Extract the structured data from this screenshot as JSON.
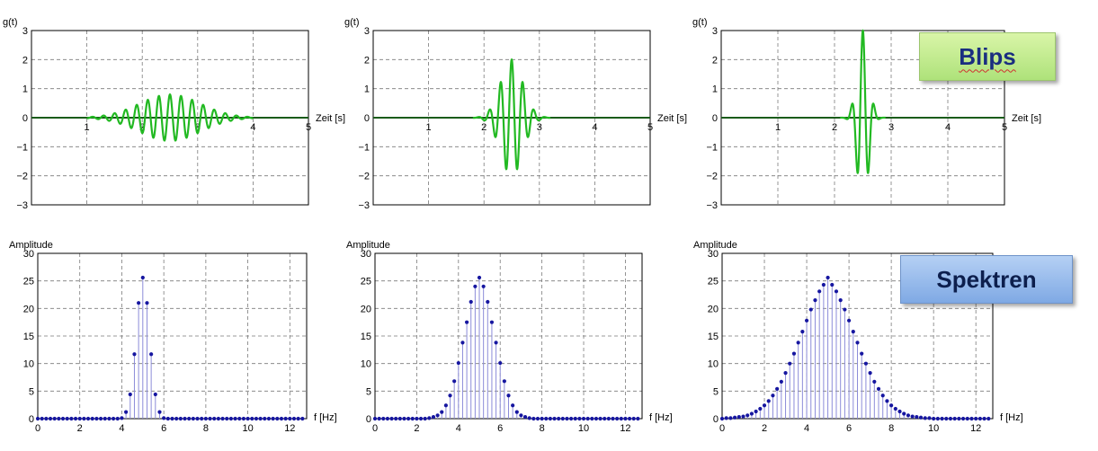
{
  "chart_data": [
    {
      "type": "line",
      "ylabel": "g(t)",
      "xlabel": "Zeit [s]",
      "xlim": [
        0,
        5
      ],
      "ylim": [
        -3,
        3
      ],
      "xticks": [
        "1",
        "2",
        "3",
        "4",
        "5"
      ],
      "yticks": [
        "3",
        "2",
        "1",
        "0",
        "−1",
        "−2",
        "−3"
      ],
      "grid": true,
      "signal": {
        "center": 2.5,
        "amplitude": 0.8,
        "sigma": 0.55,
        "frequency": 5,
        "range": [
          1.0,
          4.0
        ]
      }
    },
    {
      "type": "line",
      "ylabel": "g(t)",
      "xlabel": "Zeit [s]",
      "xlim": [
        0,
        5
      ],
      "ylim": [
        -3,
        3
      ],
      "xticks": [
        "1",
        "2",
        "3",
        "4",
        "5"
      ],
      "yticks": [
        "3",
        "2",
        "1",
        "0",
        "−1",
        "−2",
        "−3"
      ],
      "grid": true,
      "signal": {
        "center": 2.5,
        "amplitude": 2.0,
        "sigma": 0.2,
        "frequency": 5,
        "range": [
          1.8,
          3.2
        ]
      }
    },
    {
      "type": "line",
      "ylabel": "g(t)",
      "xlabel": "Zeit [s]",
      "xlim": [
        0,
        5
      ],
      "ylim": [
        -3,
        3
      ],
      "xticks": [
        "1",
        "2",
        "3",
        "4",
        "5"
      ],
      "yticks": [
        "3",
        "2",
        "1",
        "0",
        "−1",
        "−2",
        "−3"
      ],
      "grid": true,
      "signal": {
        "center": 2.5,
        "amplitude": 3.0,
        "sigma": 0.1,
        "frequency": 5,
        "range": [
          2.1,
          2.9
        ]
      }
    },
    {
      "type": "stem",
      "ylabel": "Amplitude",
      "xlabel": "f [Hz]",
      "xlim": [
        0,
        12.8
      ],
      "ylim": [
        0,
        30
      ],
      "xticks": [
        "0",
        "2",
        "4",
        "6",
        "8",
        "10",
        "12"
      ],
      "yticks": [
        "30",
        "25",
        "20",
        "15",
        "10",
        "5",
        "0"
      ],
      "grid": true,
      "x": [
        0,
        0.2,
        0.4,
        0.6,
        0.8,
        1.0,
        1.2,
        1.4,
        1.6,
        1.8,
        2.0,
        2.2,
        2.4,
        2.6,
        2.8,
        3.0,
        3.2,
        3.4,
        3.6,
        3.8,
        4.0,
        4.2,
        4.4,
        4.6,
        4.8,
        5.0,
        5.2,
        5.4,
        5.6,
        5.8,
        6.0,
        6.2,
        6.4,
        6.6,
        6.8,
        7.0,
        7.2,
        7.4,
        7.6,
        7.8,
        8.0,
        8.2,
        8.4,
        8.6,
        8.8,
        9.0,
        9.2,
        9.4,
        9.6,
        9.8,
        10.0,
        10.2,
        10.4,
        10.6,
        10.8,
        11.0,
        11.2,
        11.4,
        11.6,
        11.8,
        12.0,
        12.2,
        12.4,
        12.6
      ],
      "values": [
        0,
        0,
        0,
        0,
        0,
        0,
        0,
        0,
        0,
        0,
        0,
        0,
        0,
        0,
        0,
        0,
        0,
        0,
        0,
        0,
        0.1,
        1.2,
        4.4,
        11.7,
        21.0,
        25.6,
        21.0,
        11.7,
        4.4,
        1.2,
        0.1,
        0,
        0,
        0,
        0,
        0,
        0,
        0,
        0,
        0,
        0,
        0,
        0,
        0,
        0,
        0,
        0,
        0,
        0,
        0,
        0,
        0,
        0,
        0,
        0,
        0,
        0,
        0,
        0,
        0,
        0,
        0,
        0,
        0
      ]
    },
    {
      "type": "stem",
      "ylabel": "Amplitude",
      "xlabel": "f [Hz]",
      "xlim": [
        0,
        12.8
      ],
      "ylim": [
        0,
        30
      ],
      "xticks": [
        "0",
        "2",
        "4",
        "6",
        "8",
        "10",
        "12"
      ],
      "yticks": [
        "30",
        "25",
        "20",
        "15",
        "10",
        "5",
        "0"
      ],
      "grid": true,
      "x": [
        0,
        0.2,
        0.4,
        0.6,
        0.8,
        1.0,
        1.2,
        1.4,
        1.6,
        1.8,
        2.0,
        2.2,
        2.4,
        2.6,
        2.8,
        3.0,
        3.2,
        3.4,
        3.6,
        3.8,
        4.0,
        4.2,
        4.4,
        4.6,
        4.8,
        5.0,
        5.2,
        5.4,
        5.6,
        5.8,
        6.0,
        6.2,
        6.4,
        6.6,
        6.8,
        7.0,
        7.2,
        7.4,
        7.6,
        7.8,
        8.0,
        8.2,
        8.4,
        8.6,
        8.8,
        9.0,
        9.2,
        9.4,
        9.6,
        9.8,
        10.0,
        10.2,
        10.4,
        10.6,
        10.8,
        11.0,
        11.2,
        11.4,
        11.6,
        11.8,
        12.0,
        12.2,
        12.4,
        12.6
      ],
      "values": [
        0,
        0,
        0,
        0,
        0,
        0,
        0,
        0,
        0,
        0,
        0,
        0,
        0,
        0.1,
        0.3,
        0.6,
        1.2,
        2.4,
        4.2,
        6.8,
        10.1,
        13.8,
        17.5,
        21.2,
        24.0,
        25.6,
        24.0,
        21.2,
        17.5,
        13.8,
        10.1,
        6.8,
        4.2,
        2.4,
        1.2,
        0.6,
        0.3,
        0.1,
        0,
        0,
        0,
        0,
        0,
        0,
        0,
        0,
        0,
        0,
        0,
        0,
        0,
        0,
        0,
        0,
        0,
        0,
        0,
        0,
        0,
        0,
        0,
        0,
        0,
        0
      ]
    },
    {
      "type": "stem",
      "ylabel": "Amplitude",
      "xlabel": "f [Hz]",
      "xlim": [
        0,
        12.8
      ],
      "ylim": [
        0,
        30
      ],
      "xticks": [
        "0",
        "2",
        "4",
        "6",
        "8",
        "10",
        "12"
      ],
      "yticks": [
        "30",
        "25",
        "20",
        "15",
        "10",
        "5",
        "0"
      ],
      "grid": true,
      "x": [
        0,
        0.2,
        0.4,
        0.6,
        0.8,
        1.0,
        1.2,
        1.4,
        1.6,
        1.8,
        2.0,
        2.2,
        2.4,
        2.6,
        2.8,
        3.0,
        3.2,
        3.4,
        3.6,
        3.8,
        4.0,
        4.2,
        4.4,
        4.6,
        4.8,
        5.0,
        5.2,
        5.4,
        5.6,
        5.8,
        6.0,
        6.2,
        6.4,
        6.6,
        6.8,
        7.0,
        7.2,
        7.4,
        7.6,
        7.8,
        8.0,
        8.2,
        8.4,
        8.6,
        8.8,
        9.0,
        9.2,
        9.4,
        9.6,
        9.8,
        10.0,
        10.2,
        10.4,
        10.6,
        10.8,
        11.0,
        11.2,
        11.4,
        11.6,
        11.8,
        12.0,
        12.2,
        12.4,
        12.6
      ],
      "values": [
        0.0,
        0.1,
        0.1,
        0.2,
        0.3,
        0.4,
        0.6,
        0.9,
        1.3,
        1.8,
        2.4,
        3.2,
        4.2,
        5.4,
        6.7,
        8.3,
        10.0,
        11.8,
        13.8,
        15.8,
        17.8,
        19.8,
        21.5,
        23.1,
        24.3,
        25.6,
        24.3,
        23.1,
        21.5,
        19.8,
        17.8,
        15.8,
        13.8,
        11.8,
        10.0,
        8.3,
        6.7,
        5.4,
        4.2,
        3.2,
        2.4,
        1.8,
        1.3,
        0.9,
        0.6,
        0.4,
        0.3,
        0.2,
        0.1,
        0.1,
        0,
        0,
        0,
        0,
        0,
        0,
        0,
        0,
        0,
        0,
        0,
        0,
        0,
        0
      ]
    }
  ],
  "badges": {
    "blips": "Blips",
    "spektren": "Spektren"
  }
}
